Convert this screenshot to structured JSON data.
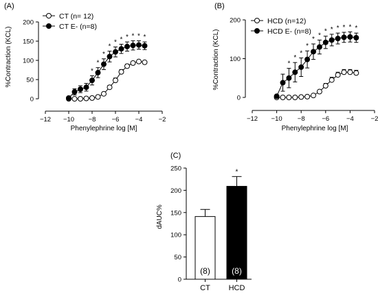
{
  "chart_data": [
    {
      "panel": "(A)",
      "type": "line",
      "xlabel": "Phenylephrine log [M]",
      "ylabel": "%Contraction (KCL)",
      "xlim": [
        -12,
        -2
      ],
      "ylim": [
        0,
        200
      ],
      "xticks": [
        -12,
        -10,
        -8,
        -6,
        -4,
        -2
      ],
      "yticks": [
        0,
        50,
        100,
        150,
        200
      ],
      "legend_position": "top-left",
      "x": [
        -10,
        -9.5,
        -9,
        -8.5,
        -8,
        -7.5,
        -7,
        -6.5,
        -6,
        -5.5,
        -5,
        -4.5,
        -4,
        -3.5
      ],
      "series": [
        {
          "name": "CT (n= 12)",
          "marker": "open-circle",
          "values": [
            0,
            0,
            0,
            1,
            2,
            5,
            13,
            30,
            48,
            70,
            85,
            93,
            97,
            95
          ],
          "errors": [
            1,
            1,
            1,
            2,
            2,
            3,
            4,
            5,
            6,
            6,
            5,
            4,
            4,
            4
          ]
        },
        {
          "name": "CT E- (n=8)",
          "marker": "filled-circle",
          "values": [
            2,
            18,
            25,
            30,
            48,
            68,
            90,
            110,
            122,
            130,
            136,
            139,
            140,
            138
          ],
          "errors": [
            3,
            8,
            9,
            10,
            12,
            13,
            14,
            14,
            13,
            12,
            12,
            12,
            11,
            10
          ],
          "significance": [
            "",
            "",
            "",
            "",
            "*",
            "*",
            "*",
            "*",
            "*",
            "*",
            "*",
            "*",
            "*",
            "*"
          ]
        }
      ]
    },
    {
      "panel": "(B)",
      "type": "line",
      "xlabel": "Phenylephrine log [M]",
      "ylabel": "%Contraction (KCL)",
      "xlim": [
        -12,
        -2
      ],
      "ylim": [
        0,
        200
      ],
      "xticks": [
        -12,
        -10,
        -8,
        -6,
        -4,
        -2
      ],
      "yticks": [
        0,
        100,
        200
      ],
      "legend_position": "top-left",
      "x": [
        -10,
        -9.5,
        -9,
        -8.5,
        -8,
        -7.5,
        -7,
        -6.5,
        -6,
        -5.5,
        -5,
        -4.5,
        -4,
        -3.5
      ],
      "series": [
        {
          "name": "HCD  (n=12)",
          "marker": "open-circle",
          "values": [
            0,
            0,
            0,
            0,
            1,
            2,
            5,
            15,
            30,
            45,
            58,
            65,
            65,
            63
          ],
          "errors": [
            1,
            1,
            1,
            1,
            2,
            2,
            3,
            4,
            6,
            7,
            7,
            7,
            7,
            7
          ]
        },
        {
          "name": "HCD E- (n=8)",
          "marker": "filled-circle",
          "values": [
            3,
            38,
            50,
            65,
            78,
            98,
            118,
            130,
            142,
            148,
            152,
            155,
            156,
            154
          ],
          "errors": [
            4,
            22,
            25,
            25,
            24,
            22,
            20,
            18,
            16,
            15,
            14,
            13,
            13,
            12
          ],
          "significance": [
            "",
            "",
            "*",
            "*",
            "*",
            "*",
            "*",
            "*",
            "*",
            "*",
            "*",
            "*",
            "*",
            "*"
          ]
        }
      ]
    },
    {
      "panel": "(C)",
      "type": "bar",
      "ylabel": "dAUC%",
      "ylim": [
        0,
        250
      ],
      "yticks": [
        0,
        50,
        100,
        150,
        200,
        250
      ],
      "categories": [
        "CT",
        "HCD"
      ],
      "values": [
        141,
        209
      ],
      "errors": [
        16,
        22
      ],
      "n_labels": [
        "(8)",
        "(8)"
      ],
      "bar_colors": [
        "#ffffff",
        "#000000"
      ],
      "significance": [
        "",
        "*"
      ]
    }
  ]
}
